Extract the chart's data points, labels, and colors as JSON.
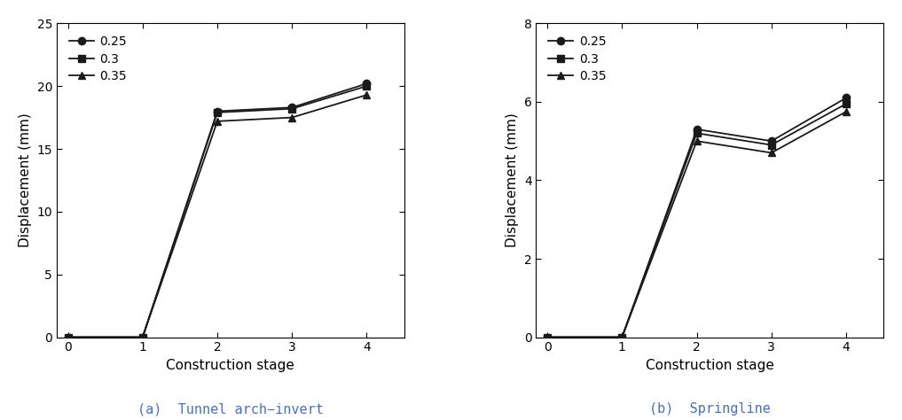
{
  "x": [
    0,
    1,
    2,
    3,
    4
  ],
  "left_series": {
    "v025": [
      0,
      0,
      18.0,
      18.3,
      20.2
    ],
    "v030": [
      0,
      0,
      17.9,
      18.2,
      20.0
    ],
    "v035": [
      0,
      0,
      17.2,
      17.5,
      19.3
    ]
  },
  "right_series": {
    "v025": [
      0,
      0,
      5.3,
      5.0,
      6.1
    ],
    "v030": [
      0,
      0,
      5.2,
      4.9,
      5.95
    ],
    "v035": [
      0,
      0,
      5.0,
      4.7,
      5.75
    ]
  },
  "left_ylim": [
    0,
    25
  ],
  "left_yticks": [
    0,
    5,
    10,
    15,
    20,
    25
  ],
  "right_ylim": [
    0,
    8
  ],
  "right_yticks": [
    0,
    2,
    4,
    6,
    8
  ],
  "xlim": [
    -0.15,
    4.5
  ],
  "xticks": [
    0,
    1,
    2,
    3,
    4
  ],
  "xlabel": "Construction stage",
  "ylabel": "Displacement (mm)",
  "legend_labels": [
    "0.25",
    "0.3",
    "0.35"
  ],
  "left_caption": "(a)  Tunnel arch−invert",
  "right_caption": "(b)  Springline",
  "caption_color": "#4472C4",
  "line_color": "#1a1a1a",
  "marker_circle": "o",
  "marker_square": "s",
  "marker_triangle": "^",
  "markersize": 6,
  "linewidth": 1.3,
  "font_size": 11,
  "caption_font_size": 11,
  "tick_font_size": 10,
  "legend_font_size": 10
}
